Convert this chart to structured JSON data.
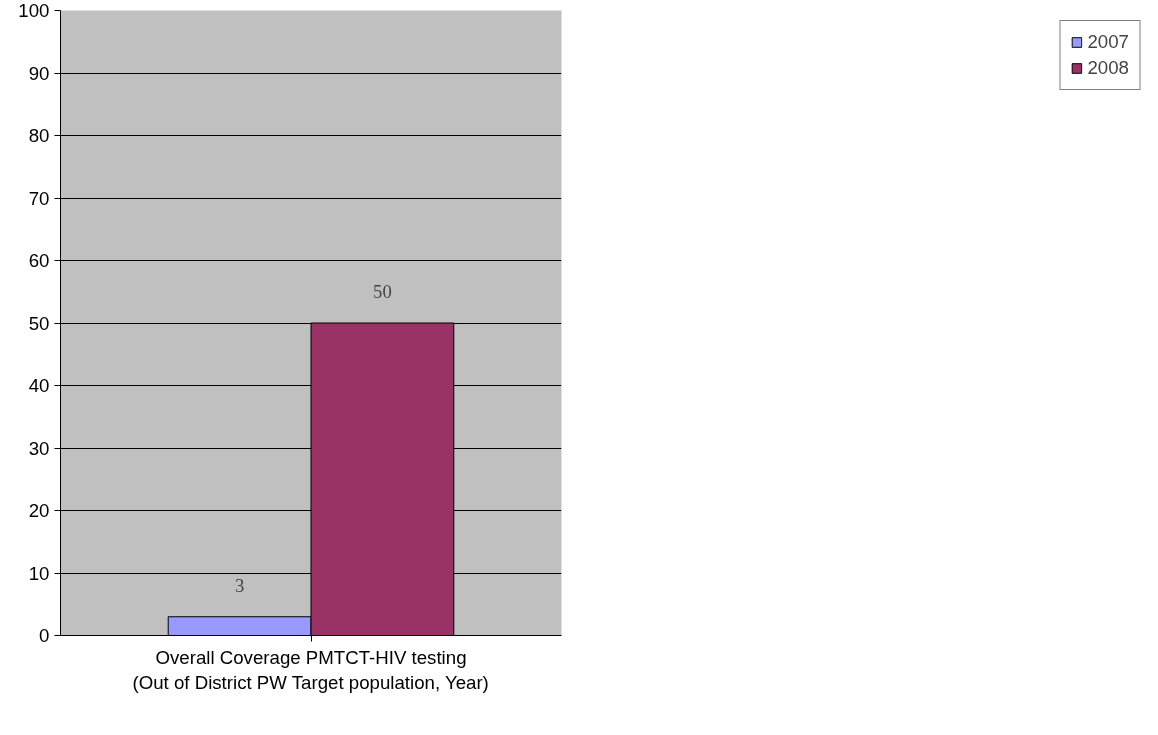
{
  "chart_data": {
    "type": "bar",
    "categories": [
      "Overall Coverage PMTCT-HIV testing\n(Out of District PW Target population, Year)"
    ],
    "series": [
      {
        "name": "2007",
        "color": "#9999ff",
        "values": [
          3
        ]
      },
      {
        "name": "2008",
        "color": "#993366",
        "values": [
          50
        ]
      }
    ],
    "ylim": [
      0,
      100
    ],
    "yticks": [
      0,
      10,
      20,
      30,
      40,
      50,
      60,
      70,
      80,
      90,
      100
    ],
    "grid": "y",
    "legend": "right",
    "data_labels": true
  }
}
